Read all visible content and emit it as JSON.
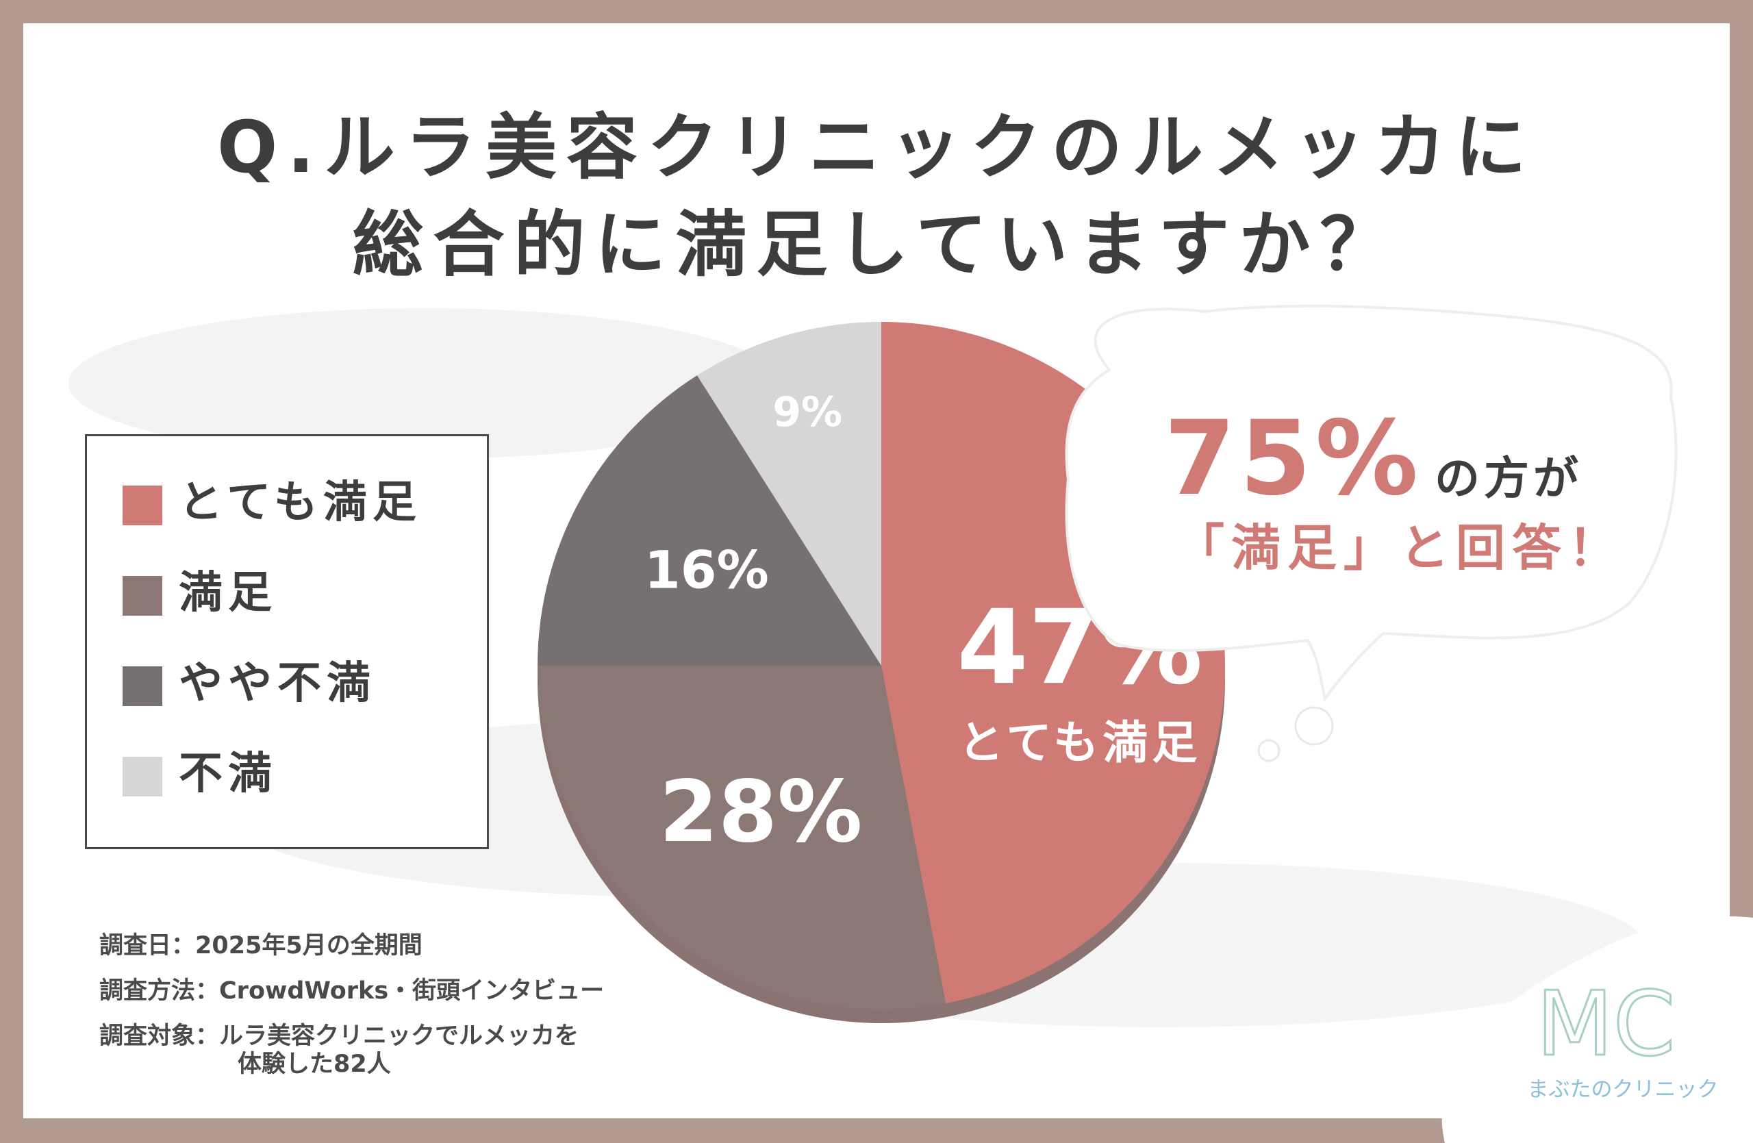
{
  "title": {
    "line1": "Q.ルラ美容クリニックのルメッカに",
    "line2": "総合的に満足していますか？"
  },
  "legend": [
    {
      "label": "とても満足",
      "color": "#d07a76"
    },
    {
      "label": "満足",
      "color": "#8b7774"
    },
    {
      "label": "やや不満",
      "color": "#767170"
    },
    {
      "label": "不満",
      "color": "#d6d6d6"
    }
  ],
  "callout": {
    "percent": "75%",
    "tail": "の方が",
    "line2": "「満足」と回答！"
  },
  "survey": {
    "date": "調査日：2025年5月の全期間",
    "method": "調査方法：CrowdWorks・街頭インタビュー",
    "target": "調査対象：ルラ美容クリニックでルメッカを",
    "target2": "体験した82人"
  },
  "logo": {
    "mark": "MC",
    "name": "まぶたのクリニック"
  },
  "colors": {
    "frame": "#b39a90",
    "accent": "#d07a76",
    "text": "#3d3d3d",
    "logo": "#8cc0d8"
  },
  "chart_data": {
    "type": "pie",
    "categories": [
      "とても満足",
      "満足",
      "やや不満",
      "不満"
    ],
    "values": [
      47,
      28,
      16,
      9
    ],
    "labels": [
      "47%",
      "28%",
      "16%",
      "9%"
    ],
    "highlight_label": "とても満足",
    "colors": [
      "#d07a76",
      "#8b7774",
      "#767170",
      "#d6d6d6"
    ]
  }
}
